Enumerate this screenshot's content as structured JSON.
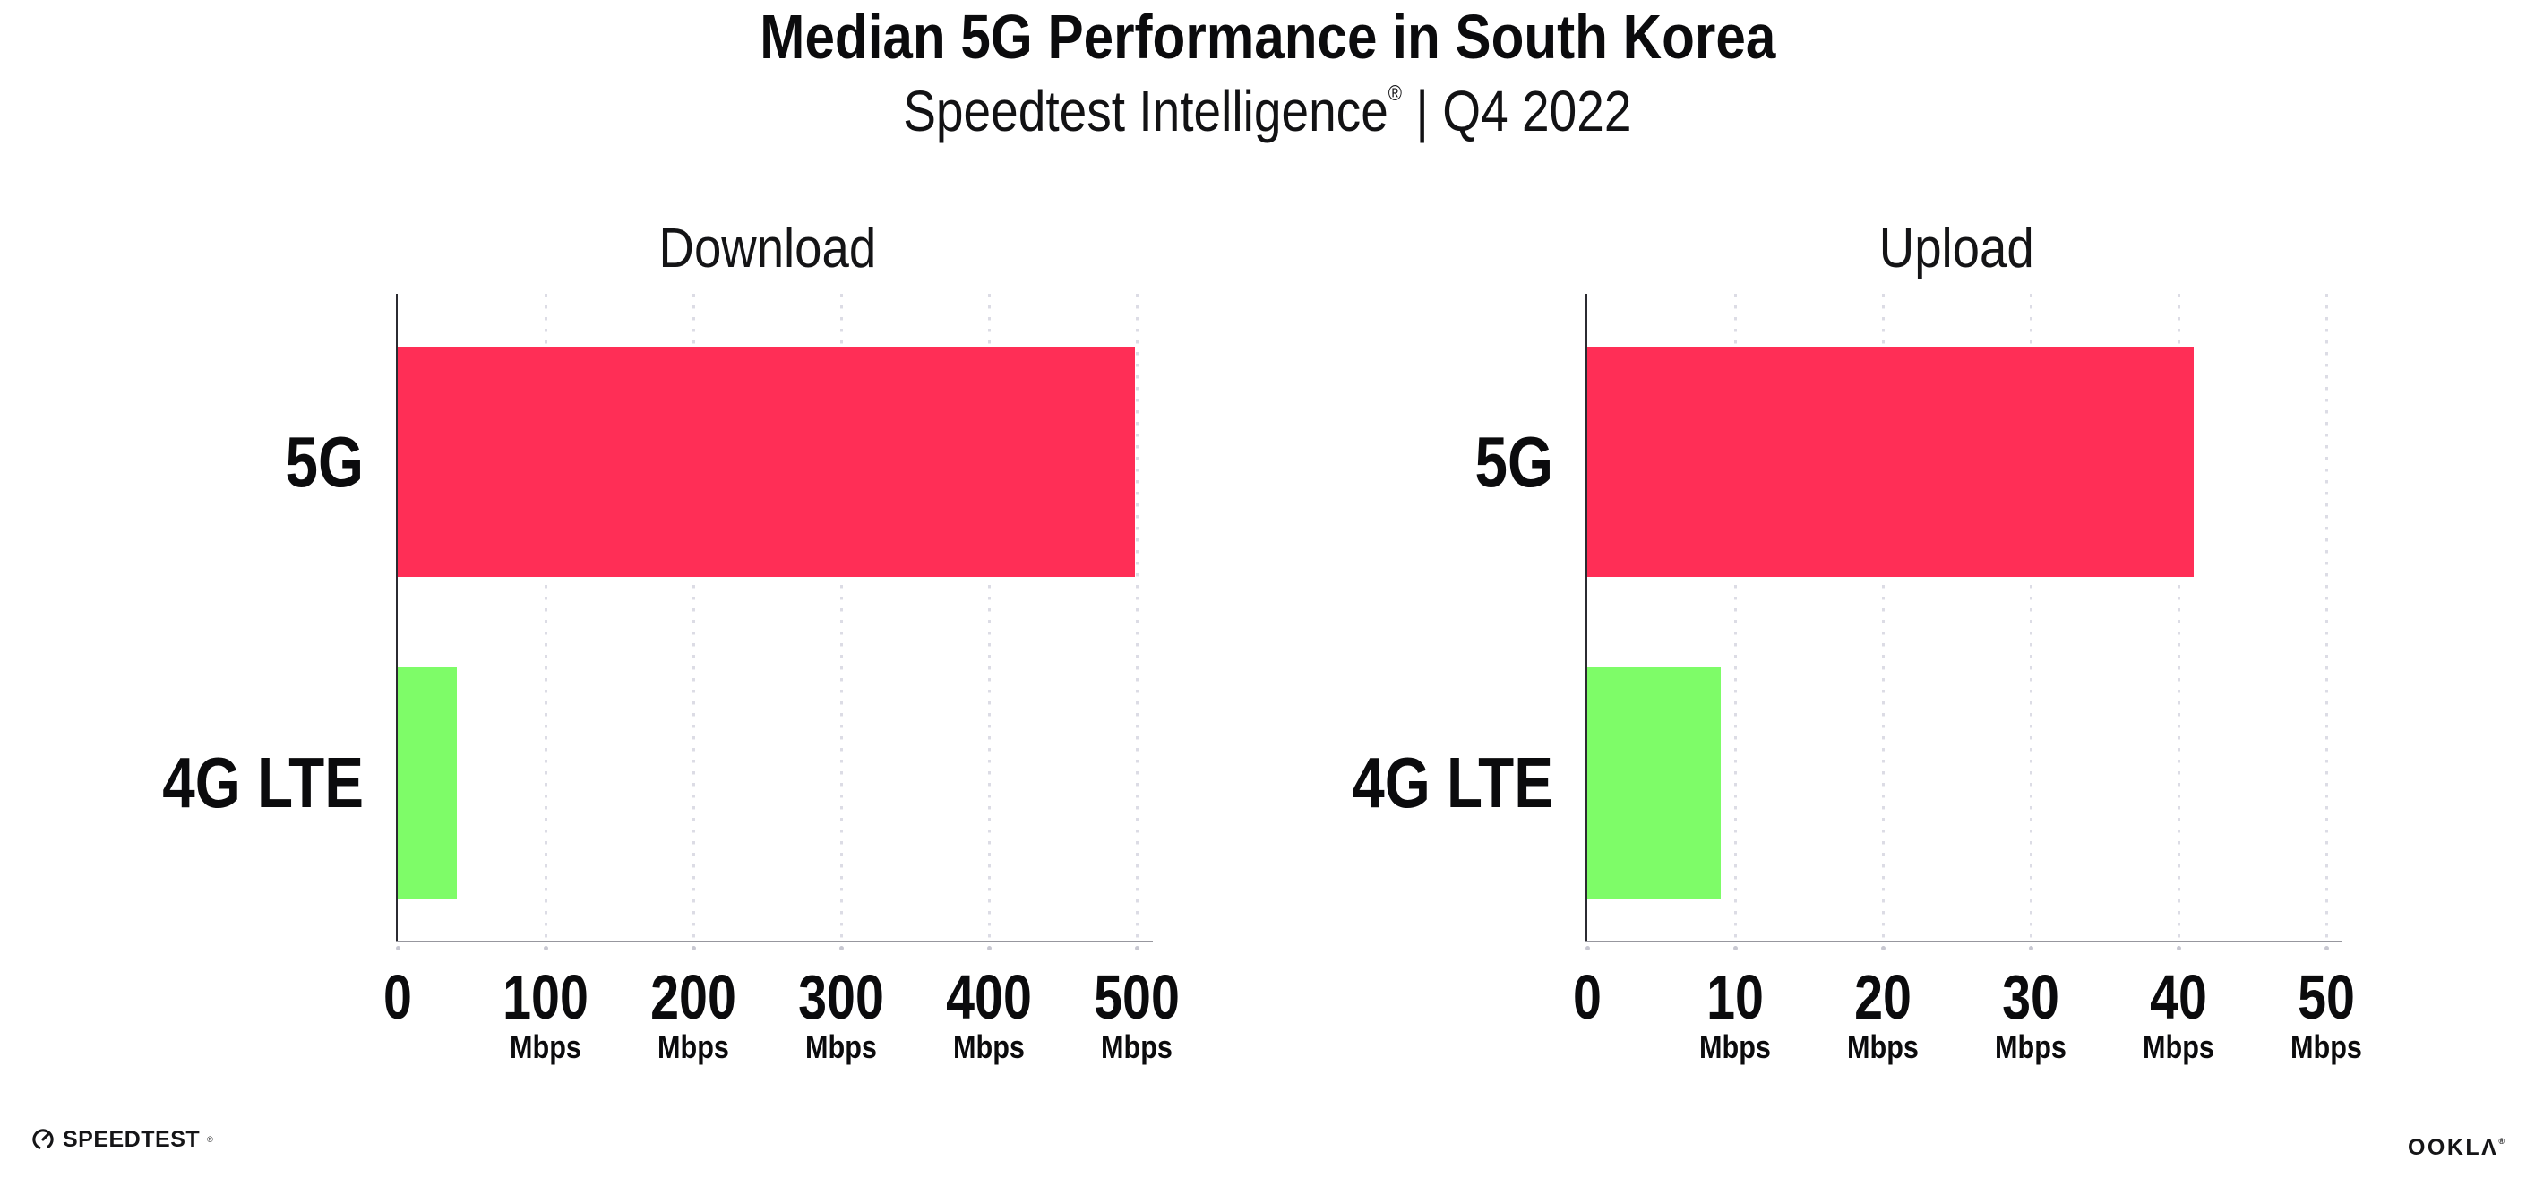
{
  "header": {
    "title": "Median 5G Performance in South Korea",
    "subtitle_brand": "Speedtest Intelligence",
    "subtitle_reg": "®",
    "subtitle_sep": "|",
    "subtitle_period": "Q4 2022"
  },
  "chart_data": [
    {
      "type": "bar",
      "orientation": "horizontal",
      "title": "Download",
      "categories": [
        "5G",
        "4G LTE"
      ],
      "values": [
        499,
        40
      ],
      "unit": "Mbps",
      "xlim": [
        0,
        500
      ],
      "xticks": [
        0,
        100,
        200,
        300,
        400,
        500
      ],
      "xtick_unit_label": "Mbps",
      "bar_colors": [
        "#ff2e56",
        "#7efc68"
      ],
      "grid": "dotted-vertical",
      "legend": "none"
    },
    {
      "type": "bar",
      "orientation": "horizontal",
      "title": "Upload",
      "categories": [
        "5G",
        "4G LTE"
      ],
      "values": [
        41,
        9
      ],
      "unit": "Mbps",
      "xlim": [
        0,
        50
      ],
      "xticks": [
        0,
        10,
        20,
        30,
        40,
        50
      ],
      "xtick_unit_label": "Mbps",
      "bar_colors": [
        "#ff2e56",
        "#7efc68"
      ],
      "grid": "dotted-vertical",
      "legend": "none"
    }
  ],
  "footer": {
    "speedtest_label": "SPEEDTEST",
    "speedtest_mark": "®",
    "ookla_label": "OOKLΛ",
    "ookla_mark": "®"
  },
  "colors": {
    "bar_5g": "#ff2e56",
    "bar_4g_lte": "#7efc68",
    "axis_y": "#2b2b31",
    "axis_x": "#97979e",
    "gridline": "#dcdce5",
    "text": "#0b0b0d",
    "background": "#ffffff"
  }
}
